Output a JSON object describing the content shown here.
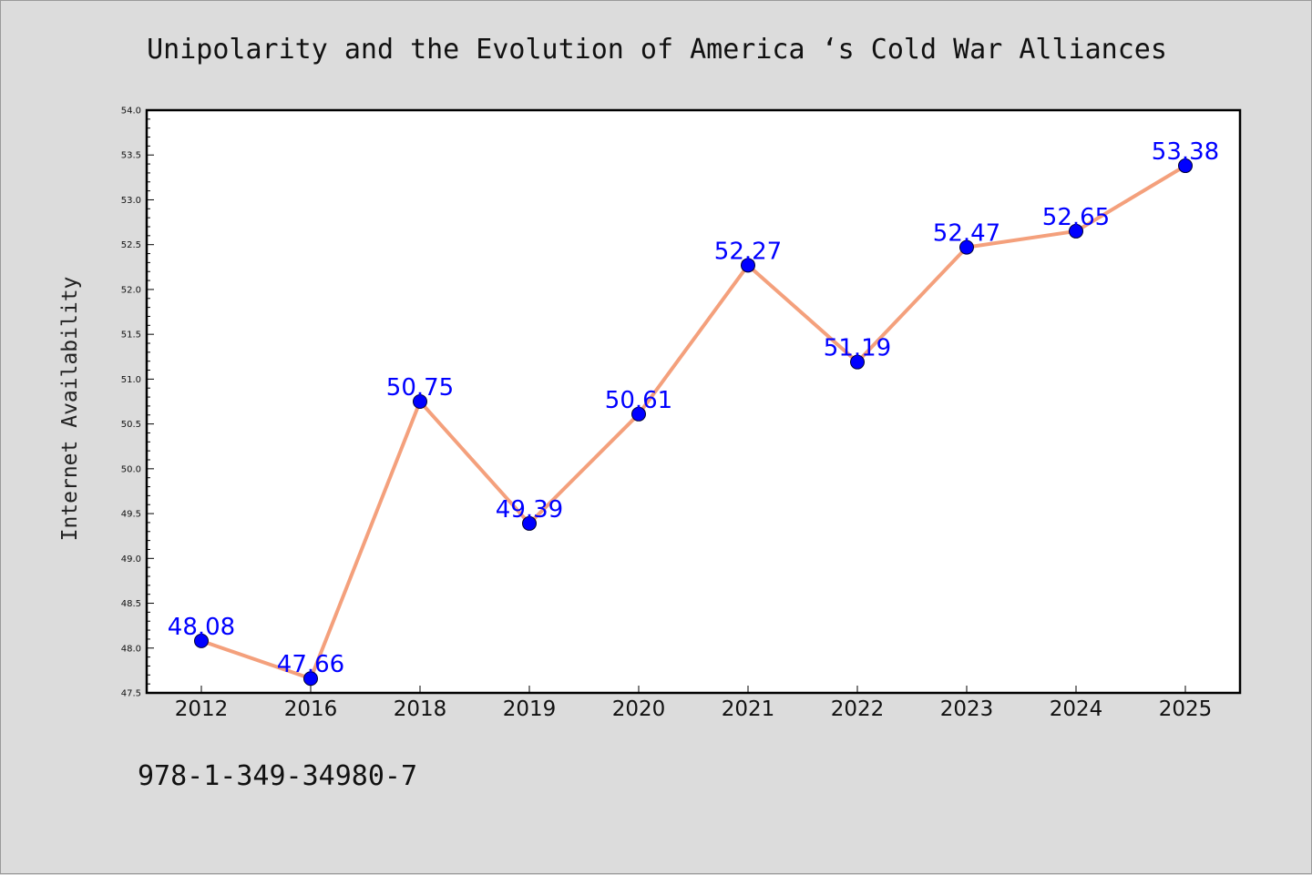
{
  "chart_data": {
    "type": "line",
    "title": "Unipolarity and the Evolution of America ‘s Cold War Alliances",
    "xlabel": "",
    "ylabel": "Internet Availability",
    "categories": [
      "2012",
      "2016",
      "2018",
      "2019",
      "2020",
      "2021",
      "2022",
      "2023",
      "2024",
      "2025"
    ],
    "series": [
      {
        "values": [
          48.08,
          47.66,
          50.75,
          49.39,
          50.61,
          52.27,
          51.19,
          52.47,
          52.65,
          53.38
        ]
      }
    ],
    "data_labels": [
      "48.08",
      "47.66",
      "50.75",
      "49.39",
      "50.61",
      "52.27",
      "51.19",
      "52.47",
      "52.65",
      "53.38"
    ],
    "ylim": [
      47.5,
      54.0
    ],
    "yticks": [
      "47.5",
      "48.0",
      "48.5",
      "49.0",
      "49.5",
      "50.0",
      "50.5",
      "51.0",
      "51.5",
      "52.0",
      "52.5",
      "53.0",
      "53.5",
      "54.0"
    ],
    "grid": false,
    "line_color": "#f4a07c",
    "marker_color": "#0000ff",
    "label_color": "#0000ff"
  },
  "footer": {
    "isbn": "978-1-349-34980-7"
  }
}
